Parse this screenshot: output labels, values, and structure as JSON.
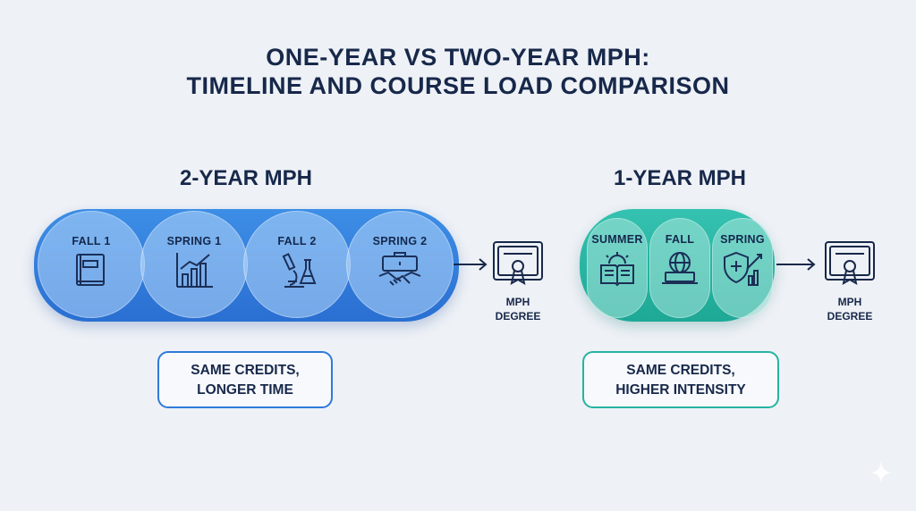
{
  "title": {
    "line1": "ONE-YEAR VS TWO-YEAR MPH:",
    "line2": "TIMELINE AND COURSE LOAD COMPARISON"
  },
  "two_year": {
    "heading": "2-YEAR MPH",
    "accent": "#2f7ad9",
    "stages": [
      {
        "label": "FALL 1",
        "icon": "book-icon"
      },
      {
        "label": "SPRING 1",
        "icon": "bar-chart-icon"
      },
      {
        "label": "FALL 2",
        "icon": "microscope-icon"
      },
      {
        "label": "SPRING 2",
        "icon": "briefcase-handshake-icon"
      }
    ],
    "outcome": {
      "line1": "MPH",
      "line2": "DEGREE",
      "icon": "certificate-icon"
    },
    "note": {
      "line1": "SAME CREDITS,",
      "line2": "LONGER TIME"
    }
  },
  "one_year": {
    "heading": "1-YEAR MPH",
    "accent": "#1fae9c",
    "stages": [
      {
        "label": "SUMMER",
        "icon": "sun-book-icon"
      },
      {
        "label": "FALL",
        "icon": "globe-laptop-icon"
      },
      {
        "label": "SPRING",
        "icon": "health-shield-chart-icon"
      }
    ],
    "outcome": {
      "line1": "MPH",
      "line2": "DEGREE",
      "icon": "certificate-icon"
    },
    "note": {
      "line1": "SAME CREDITS,",
      "line2": "HIGHER INTENSITY"
    }
  }
}
